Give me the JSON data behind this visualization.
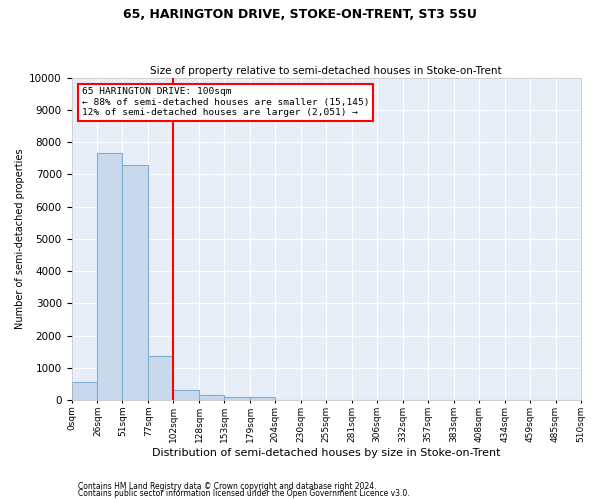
{
  "title": "65, HARINGTON DRIVE, STOKE-ON-TRENT, ST3 5SU",
  "subtitle": "Size of property relative to semi-detached houses in Stoke-on-Trent",
  "xlabel": "Distribution of semi-detached houses by size in Stoke-on-Trent",
  "ylabel": "Number of semi-detached properties",
  "footnote1": "Contains HM Land Registry data © Crown copyright and database right 2024.",
  "footnote2": "Contains public sector information licensed under the Open Government Licence v3.0.",
  "bin_edges": [
    0,
    26,
    51,
    77,
    102,
    128,
    153,
    179,
    204,
    230,
    255,
    281,
    306,
    332,
    357,
    383,
    408,
    434,
    459,
    485,
    510
  ],
  "bin_labels": [
    "0sqm",
    "26sqm",
    "51sqm",
    "77sqm",
    "102sqm",
    "128sqm",
    "153sqm",
    "179sqm",
    "204sqm",
    "230sqm",
    "255sqm",
    "281sqm",
    "306sqm",
    "332sqm",
    "357sqm",
    "383sqm",
    "408sqm",
    "434sqm",
    "459sqm",
    "485sqm",
    "510sqm"
  ],
  "bar_values": [
    550,
    7650,
    7280,
    1370,
    310,
    160,
    100,
    90,
    0,
    0,
    0,
    0,
    0,
    0,
    0,
    0,
    0,
    0,
    0,
    0
  ],
  "bar_color": "#c8d9ee",
  "bar_edge_color": "#7bafd4",
  "vline_x": 102,
  "vline_color": "red",
  "annotation_line1": "65 HARINGTON DRIVE: 100sqm",
  "annotation_line2": "← 88% of semi-detached houses are smaller (15,145)",
  "annotation_line3": "12% of semi-detached houses are larger (2,051) →",
  "annotation_box_color": "white",
  "annotation_box_edge_color": "red",
  "ylim_max": 10000,
  "yticks": [
    0,
    1000,
    2000,
    3000,
    4000,
    5000,
    6000,
    7000,
    8000,
    9000,
    10000
  ],
  "background_color": "#e8eef8",
  "grid_color": "white",
  "title_fontsize": 9,
  "subtitle_fontsize": 7.5,
  "ylabel_fontsize": 7,
  "xlabel_fontsize": 8,
  "footnote_fontsize": 5.5,
  "ytick_fontsize": 7.5,
  "xtick_fontsize": 6.5
}
